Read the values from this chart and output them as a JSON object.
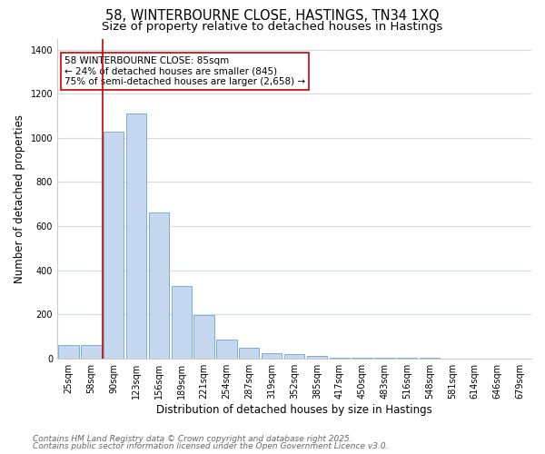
{
  "title_line1": "58, WINTERBOURNE CLOSE, HASTINGS, TN34 1XQ",
  "title_line2": "Size of property relative to detached houses in Hastings",
  "xlabel": "Distribution of detached houses by size in Hastings",
  "ylabel": "Number of detached properties",
  "categories": [
    "25sqm",
    "58sqm",
    "90sqm",
    "123sqm",
    "156sqm",
    "189sqm",
    "221sqm",
    "254sqm",
    "287sqm",
    "319sqm",
    "352sqm",
    "385sqm",
    "417sqm",
    "450sqm",
    "483sqm",
    "516sqm",
    "548sqm",
    "581sqm",
    "614sqm",
    "646sqm",
    "679sqm"
  ],
  "values": [
    62,
    60,
    1030,
    1110,
    660,
    330,
    195,
    85,
    47,
    22,
    20,
    10,
    3,
    2,
    1,
    1,
    1,
    0,
    0,
    0,
    0
  ],
  "bar_color": "#c5d8f0",
  "bar_edge_color": "#7badd6",
  "vline_x": 1.5,
  "vline_color": "#cc0000",
  "annotation_text": "58 WINTERBOURNE CLOSE: 85sqm\n← 24% of detached houses are smaller (845)\n75% of semi-detached houses are larger (2,658) →",
  "annotation_box_color": "#ffffff",
  "annotation_box_edge": "#cc0000",
  "ylim": [
    0,
    1450
  ],
  "yticks": [
    0,
    200,
    400,
    600,
    800,
    1000,
    1200,
    1400
  ],
  "plot_bg_color": "#ffffff",
  "fig_bg_color": "#ffffff",
  "grid_color": "#d0dce8",
  "footer_line1": "Contains HM Land Registry data © Crown copyright and database right 2025.",
  "footer_line2": "Contains public sector information licensed under the Open Government Licence v3.0.",
  "title_fontsize": 10.5,
  "subtitle_fontsize": 9.5,
  "axis_label_fontsize": 8.5,
  "tick_fontsize": 7,
  "annotation_fontsize": 7.5,
  "footer_fontsize": 6.5
}
